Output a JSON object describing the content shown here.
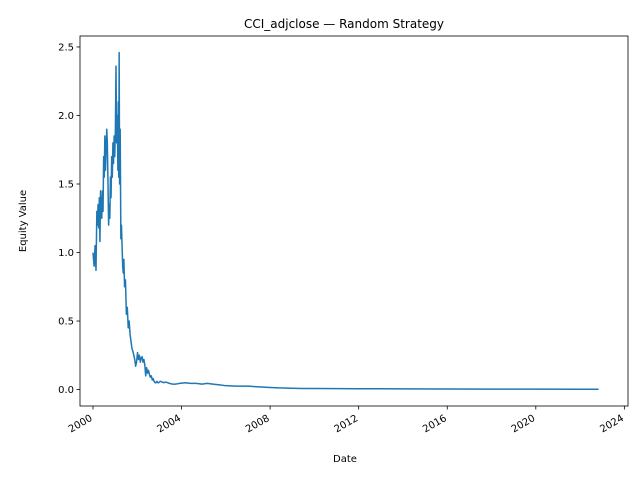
{
  "chart_data": {
    "type": "line",
    "title": "CCI_adjclose — Random Strategy",
    "xlabel": "Date",
    "ylabel": "Equity Value",
    "x_ticks": [
      "2000",
      "2004",
      "2008",
      "2012",
      "2016",
      "2020",
      "2024"
    ],
    "y_ticks": [
      "0.0",
      "0.5",
      "1.0",
      "1.5",
      "2.0",
      "2.5"
    ],
    "xlim": [
      "1999-06-01",
      "2024-03-01"
    ],
    "ylim": [
      -0.12,
      2.58
    ],
    "grid": false,
    "legend": "none",
    "color": "#1f77b4",
    "series": [
      {
        "x": [
          "2000-01-01",
          "2000-01-20",
          "2000-02-05",
          "2000-02-20",
          "2000-03-05",
          "2000-03-15",
          "2000-03-25",
          "2000-04-05",
          "2000-04-15",
          "2000-04-25",
          "2000-05-05",
          "2000-05-15",
          "2000-05-25",
          "2000-06-05",
          "2000-06-15",
          "2000-06-25",
          "2000-07-05",
          "2000-07-15",
          "2000-07-25",
          "2000-08-05",
          "2000-08-15",
          "2000-08-25",
          "2000-09-05",
          "2000-09-15",
          "2000-09-25",
          "2000-10-05",
          "2000-10-15",
          "2000-10-25",
          "2000-11-05",
          "2000-11-15",
          "2000-11-25",
          "2000-12-05",
          "2000-12-15",
          "2000-12-25",
          "2001-01-05",
          "2001-01-15",
          "2001-01-25",
          "2001-02-05",
          "2001-02-15",
          "2001-02-22",
          "2001-03-01",
          "2001-03-08",
          "2001-03-15",
          "2001-03-25",
          "2001-04-05",
          "2001-04-15",
          "2001-04-25",
          "2001-05-05",
          "2001-05-15",
          "2001-05-25",
          "2001-06-05",
          "2001-06-20",
          "2001-07-05",
          "2001-07-20",
          "2001-08-05",
          "2001-08-20",
          "2001-09-05",
          "2001-09-20",
          "2001-10-05",
          "2001-10-20",
          "2001-11-05",
          "2001-11-20",
          "2001-12-05",
          "2001-12-20",
          "2002-01-05",
          "2002-01-20",
          "2002-02-05",
          "2002-02-20",
          "2002-03-05",
          "2002-03-20",
          "2002-04-05",
          "2002-04-20",
          "2002-05-05",
          "2002-05-20",
          "2002-06-05",
          "2002-06-20",
          "2002-07-05",
          "2002-07-20",
          "2002-08-05",
          "2002-08-20",
          "2002-09-05",
          "2002-09-20",
          "2002-10-05",
          "2002-10-20",
          "2002-11-05",
          "2002-11-20",
          "2002-12-05",
          "2002-12-20",
          "2003-01-15",
          "2003-02-15",
          "2003-03-15",
          "2003-04-15",
          "2003-05-15",
          "2003-06-15",
          "2003-08-01",
          "2003-10-01",
          "2003-12-01",
          "2004-03-01",
          "2004-06-01",
          "2004-09-01",
          "2004-12-01",
          "2005-03-01",
          "2005-06-01",
          "2005-09-01",
          "2005-12-01",
          "2006-06-01",
          "2007-01-01",
          "2007-06-01",
          "2008-01-01",
          "2008-06-01",
          "2009-01-01",
          "2009-06-01",
          "2010-01-01",
          "2011-01-01",
          "2012-01-01",
          "2014-01-01",
          "2016-01-01",
          "2018-01-01",
          "2020-01-01",
          "2022-01-01",
          "2022-11-01"
        ],
        "y": [
          1.0,
          0.9,
          1.05,
          0.87,
          1.3,
          1.2,
          1.35,
          1.18,
          1.4,
          1.08,
          1.45,
          1.3,
          1.25,
          1.45,
          1.3,
          1.7,
          1.55,
          1.85,
          1.6,
          1.75,
          1.9,
          1.8,
          1.5,
          1.2,
          1.35,
          1.25,
          1.55,
          1.4,
          1.7,
          1.55,
          1.8,
          1.65,
          1.85,
          1.7,
          1.9,
          2.36,
          1.8,
          2.0,
          1.6,
          2.1,
          1.55,
          2.46,
          1.5,
          1.9,
          1.1,
          1.2,
          1.05,
          0.9,
          0.85,
          0.95,
          0.75,
          0.8,
          0.55,
          0.6,
          0.45,
          0.5,
          0.4,
          0.35,
          0.3,
          0.28,
          0.25,
          0.22,
          0.17,
          0.2,
          0.27,
          0.22,
          0.25,
          0.2,
          0.23,
          0.24,
          0.2,
          0.22,
          0.18,
          0.1,
          0.16,
          0.12,
          0.14,
          0.11,
          0.09,
          0.1,
          0.07,
          0.08,
          0.06,
          0.05,
          0.05,
          0.06,
          0.05,
          0.05,
          0.06,
          0.055,
          0.05,
          0.055,
          0.05,
          0.045,
          0.04,
          0.04,
          0.045,
          0.05,
          0.045,
          0.045,
          0.04,
          0.045,
          0.04,
          0.035,
          0.03,
          0.025,
          0.025,
          0.02,
          0.015,
          0.012,
          0.01,
          0.008,
          0.008,
          0.007,
          0.006,
          0.005,
          0.004,
          0.003,
          0.003,
          0.002,
          0.002
        ]
      }
    ]
  }
}
